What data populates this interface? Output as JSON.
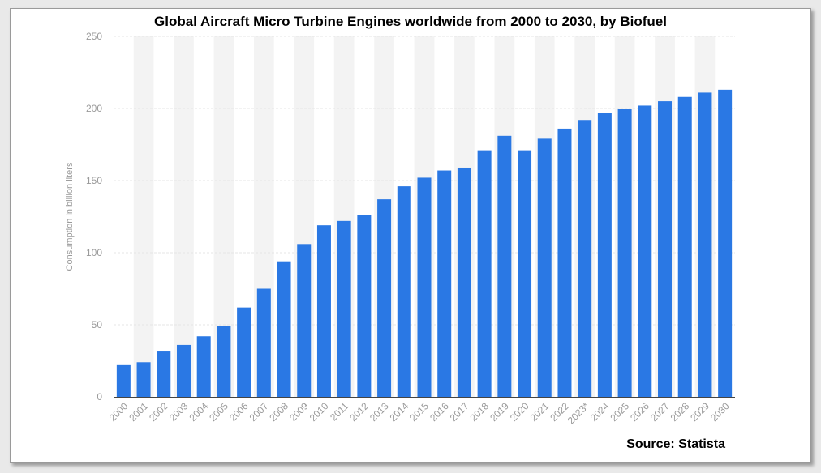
{
  "chart_data": {
    "type": "bar",
    "title": "Global Aircraft Micro Turbine Engines worldwide from 2000 to 2030, by Biofuel",
    "ylabel": "Consumption in billion liters",
    "xlabel": "",
    "ylim": [
      0,
      250
    ],
    "yticks": [
      0,
      50,
      100,
      150,
      200,
      250
    ],
    "grid": true,
    "categories": [
      "2000",
      "2001",
      "2002",
      "2003",
      "2004",
      "2005",
      "2006",
      "2007",
      "2008",
      "2009",
      "2010",
      "2011",
      "2012",
      "2013",
      "2014",
      "2015",
      "2016",
      "2017",
      "2018",
      "2019",
      "2020",
      "2021",
      "2022",
      "2023*",
      "2024",
      "2025",
      "2026",
      "2027",
      "2028",
      "2029",
      "2030"
    ],
    "values": [
      22,
      24,
      32,
      36,
      42,
      49,
      62,
      75,
      94,
      106,
      119,
      122,
      126,
      137,
      146,
      152,
      157,
      159,
      171,
      181,
      171,
      179,
      186,
      192,
      197,
      200,
      202,
      205,
      208,
      211,
      213
    ],
    "colors": {
      "bar": "#2a78e4",
      "band": "#f3f3f3",
      "grid": "#e6e6e6",
      "tick": "#9a9a9a"
    }
  },
  "source": "Source: Statista"
}
